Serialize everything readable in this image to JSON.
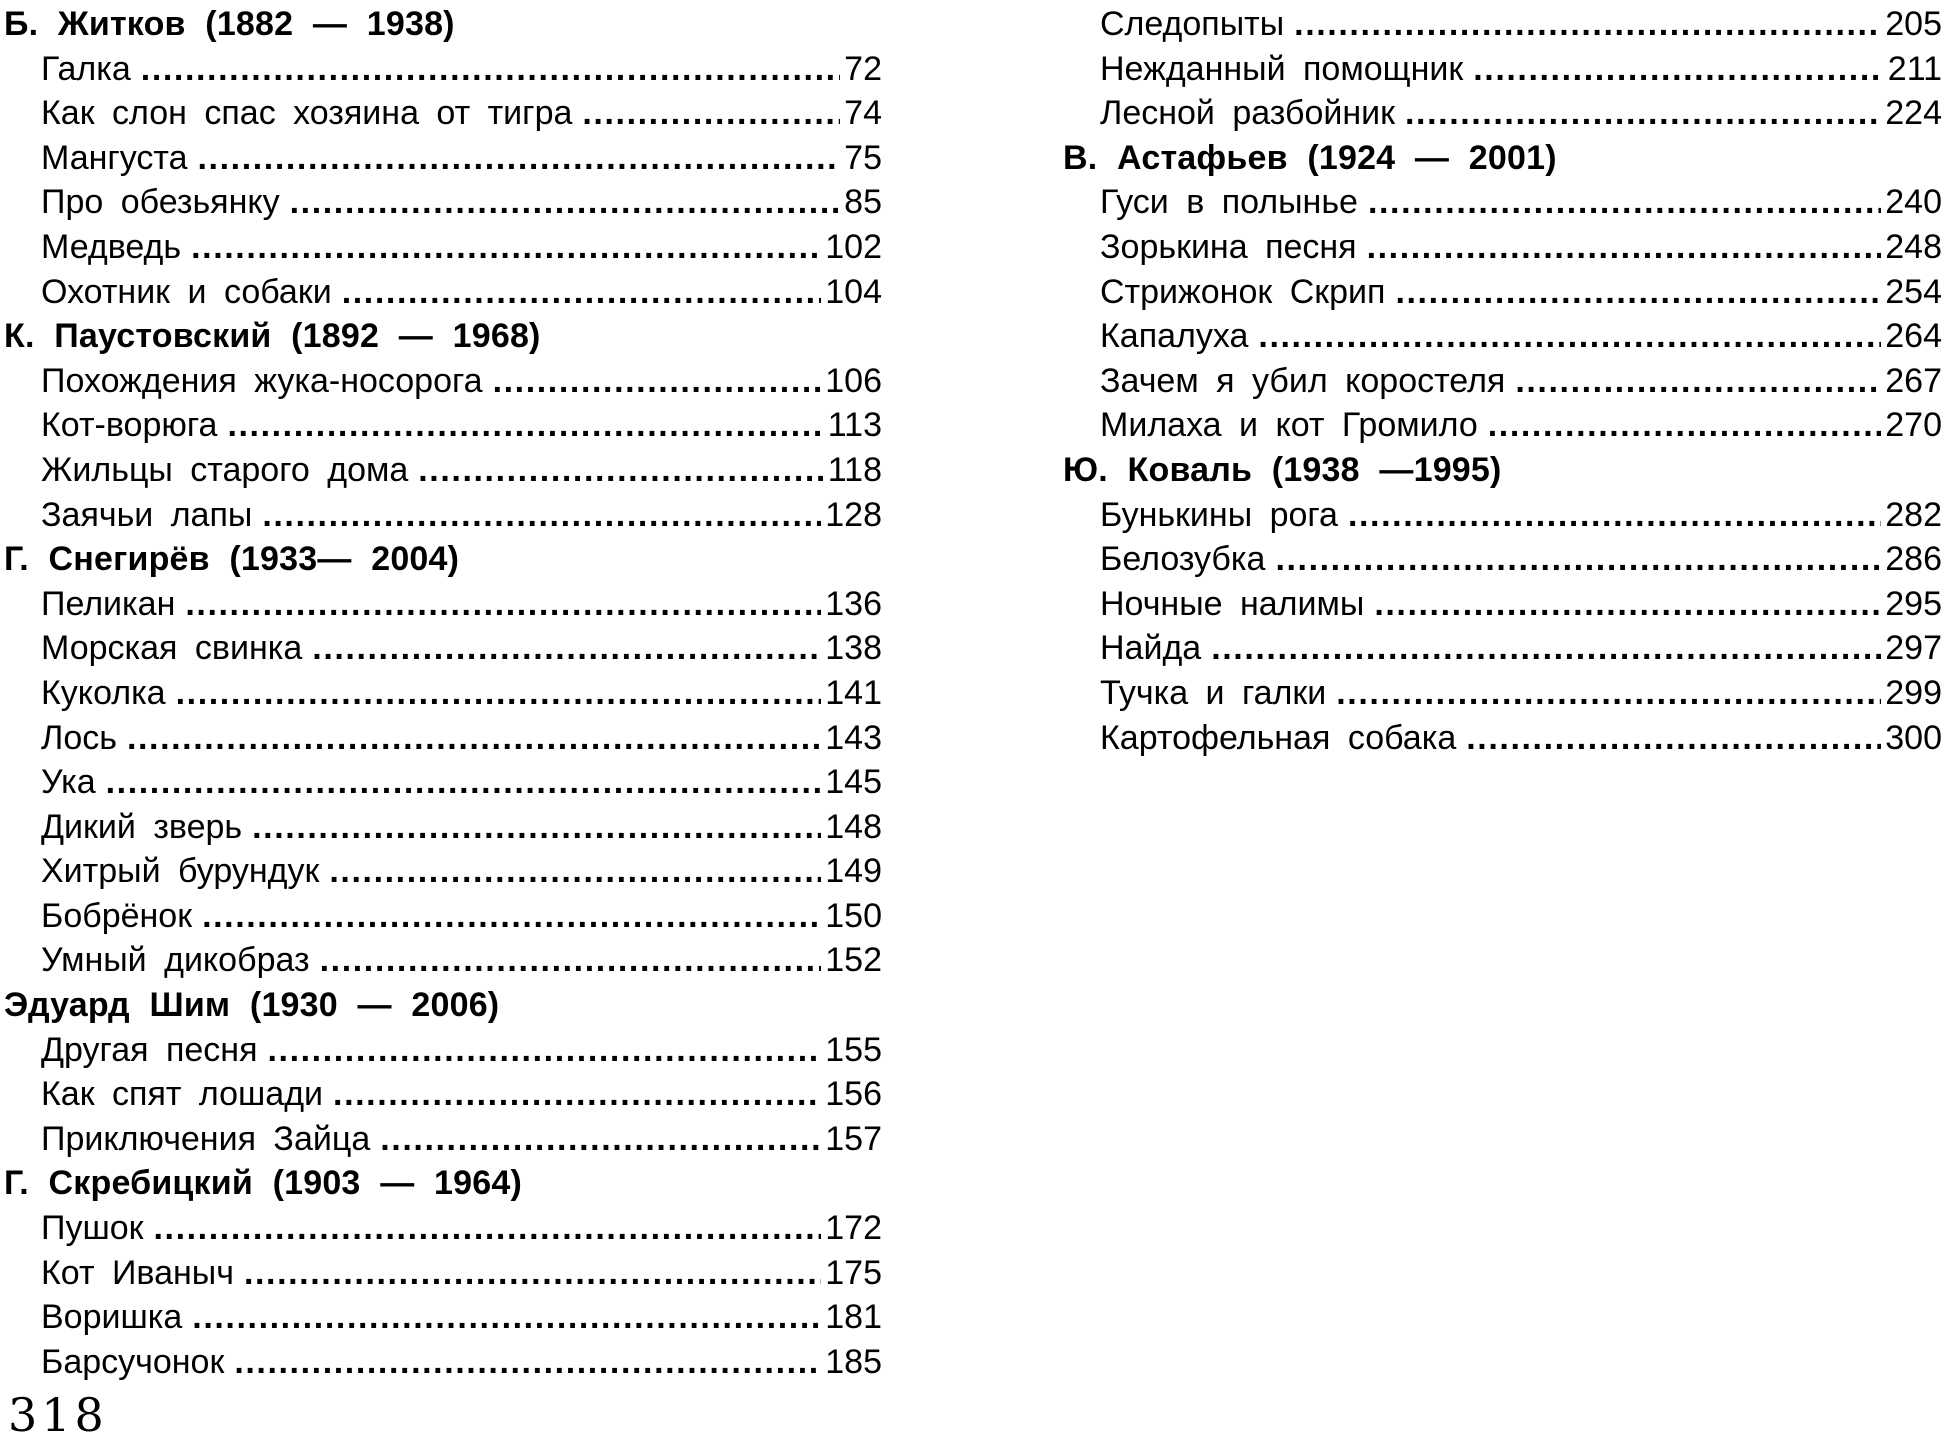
{
  "page": {
    "folio": "318"
  },
  "colors": {
    "ink": "#000000",
    "background": "#ffffff"
  },
  "toc": {
    "columns": [
      {
        "blocks": [
          {
            "type": "header",
            "text": "Б. Житков (1882 — 1938)"
          },
          {
            "type": "entry",
            "title": "Галка",
            "page": "72"
          },
          {
            "type": "entry",
            "title": "Как слон спас хозяина от тигра",
            "page": "74"
          },
          {
            "type": "entry",
            "title": "Мангуста",
            "page": "75"
          },
          {
            "type": "entry",
            "title": "Про обезьянку",
            "page": "85"
          },
          {
            "type": "entry",
            "title": "Медведь",
            "page": "102"
          },
          {
            "type": "entry",
            "title": "Охотник и собаки",
            "page": "104"
          },
          {
            "type": "header",
            "text": "К. Паустовский (1892 — 1968)"
          },
          {
            "type": "entry",
            "title": "Похождения жука-носорога",
            "page": "106"
          },
          {
            "type": "entry",
            "title": "Кот-ворюга",
            "page": "113"
          },
          {
            "type": "entry",
            "title": "Жильцы старого дома",
            "page": "118"
          },
          {
            "type": "entry",
            "title": "Заячьи лапы",
            "page": "128"
          },
          {
            "type": "header",
            "text": "Г. Снегирёв (1933— 2004)"
          },
          {
            "type": "entry",
            "title": "Пеликан",
            "page": "136"
          },
          {
            "type": "entry",
            "title": "Морская свинка",
            "page": "138"
          },
          {
            "type": "entry",
            "title": "Куколка",
            "page": "141"
          },
          {
            "type": "entry",
            "title": "Лось",
            "page": "143"
          },
          {
            "type": "entry",
            "title": "Ука",
            "page": "145"
          },
          {
            "type": "entry",
            "title": "Дикий зверь",
            "page": "148"
          },
          {
            "type": "entry",
            "title": "Хитрый бурундук",
            "page": "149"
          },
          {
            "type": "entry",
            "title": "Бобрёнок",
            "page": "150"
          },
          {
            "type": "entry",
            "title": "Умный дикобраз",
            "page": "152"
          },
          {
            "type": "header",
            "text": "Эдуард Шим (1930 — 2006)"
          },
          {
            "type": "entry",
            "title": "Другая песня",
            "page": "155"
          },
          {
            "type": "entry",
            "title": "Как спят лошади",
            "page": "156"
          },
          {
            "type": "entry",
            "title": "Приключения Зайца",
            "page": "157"
          },
          {
            "type": "header",
            "text": "Г. Скребицкий (1903 — 1964)"
          },
          {
            "type": "entry",
            "title": "Пушок",
            "page": "172"
          },
          {
            "type": "entry",
            "title": "Кот Иваныч",
            "page": "175"
          },
          {
            "type": "entry",
            "title": "Воришка",
            "page": "181"
          },
          {
            "type": "entry",
            "title": "Барсучонок",
            "page": "185"
          }
        ]
      },
      {
        "blocks": [
          {
            "type": "entry",
            "title": "Следопыты",
            "page": "205"
          },
          {
            "type": "entry",
            "title": "Нежданный помощник",
            "page": "211"
          },
          {
            "type": "entry",
            "title": "Лесной разбойник",
            "page": "224"
          },
          {
            "type": "header",
            "text": "В. Астафьев (1924 — 2001)"
          },
          {
            "type": "entry",
            "title": "Гуси в полынье",
            "page": "240"
          },
          {
            "type": "entry",
            "title": "Зорькина песня",
            "page": "248"
          },
          {
            "type": "entry",
            "title": "Стрижонок Скрип",
            "page": "254"
          },
          {
            "type": "entry",
            "title": "Капалуха",
            "page": "264"
          },
          {
            "type": "entry",
            "title": "Зачем я убил коростеля",
            "page": "267"
          },
          {
            "type": "entry",
            "title": "Милаха и кот Громило",
            "page": "270"
          },
          {
            "type": "header",
            "text": "Ю. Коваль (1938 —1995)"
          },
          {
            "type": "entry",
            "title": "Бунькины рога",
            "page": "282"
          },
          {
            "type": "entry",
            "title": "Белозубка",
            "page": "286"
          },
          {
            "type": "entry",
            "title": "Ночные налимы",
            "page": "295"
          },
          {
            "type": "entry",
            "title": "Найда",
            "page": "297"
          },
          {
            "type": "entry",
            "title": "Тучка и галки",
            "page": "299"
          },
          {
            "type": "entry",
            "title": "Картофельная собака",
            "page": "300"
          }
        ]
      }
    ]
  }
}
